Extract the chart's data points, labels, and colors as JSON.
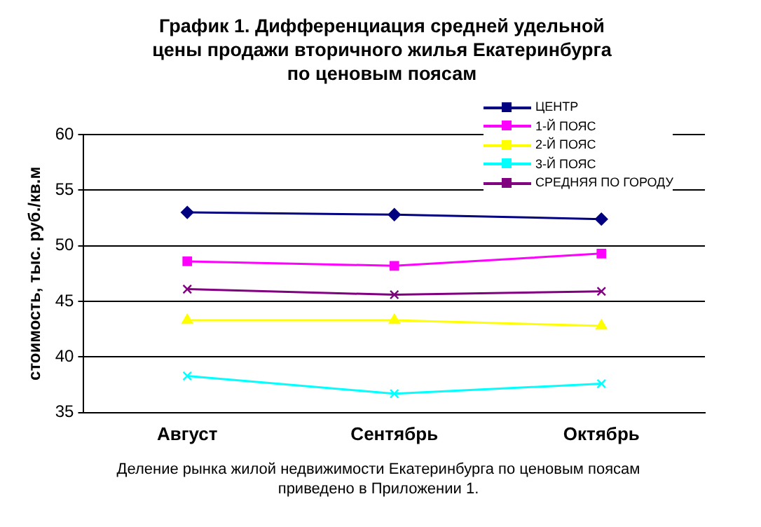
{
  "chart_data": {
    "type": "line",
    "title": "График 1. Дифференциация средней удельной цены продажи вторичного жилья Екатеринбурга по ценовым поясам",
    "ylabel": "стоимость, тыс. руб./кв.м",
    "categories": [
      "Август",
      "Сентябрь",
      "Октябрь"
    ],
    "series": [
      {
        "name": "ЦЕНТР",
        "color": "#000080",
        "marker": "diamond",
        "values": [
          53.0,
          52.8,
          52.4
        ]
      },
      {
        "name": "1-Й ПОЯС",
        "color": "#ff00ff",
        "marker": "square",
        "values": [
          48.6,
          48.2,
          49.3
        ]
      },
      {
        "name": "2-Й ПОЯС",
        "color": "#ffff00",
        "marker": "triangle",
        "values": [
          43.3,
          43.3,
          42.8
        ]
      },
      {
        "name": "3-Й ПОЯС",
        "color": "#00ffff",
        "marker": "cross",
        "values": [
          38.3,
          36.7,
          37.6
        ]
      },
      {
        "name": "СРЕДНЯЯ ПО ГОРОДУ",
        "color": "#800080",
        "marker": "cross",
        "values": [
          46.1,
          45.6,
          45.9
        ]
      }
    ],
    "ylim": [
      35,
      60
    ],
    "yticks": [
      35,
      40,
      45,
      50,
      55,
      60
    ],
    "grid": "y",
    "legend": "top right",
    "annotations": [
      "Деление рынка жилой недвижимости Екатеринбурга по ценовым поясам приведено в Приложении 1."
    ]
  }
}
